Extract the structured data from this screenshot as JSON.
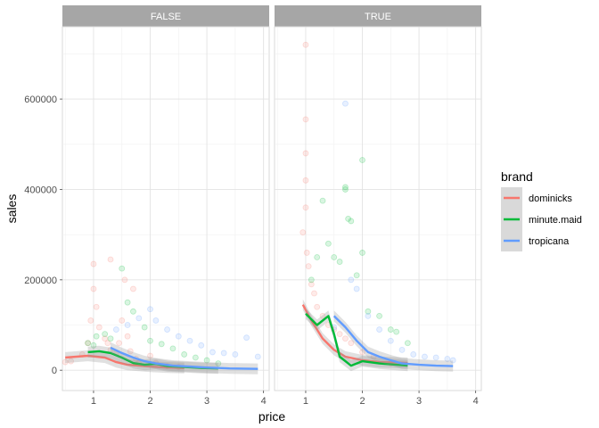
{
  "chart_data": {
    "type": "scatter",
    "title": "",
    "xlabel": "price",
    "ylabel": "sales",
    "xlim": [
      0.45,
      4.1
    ],
    "ylim": [
      -45000,
      760000
    ],
    "x_ticks": [
      1,
      2,
      3,
      4
    ],
    "y_ticks": [
      0,
      200000,
      400000,
      600000
    ],
    "y_tick_labels": [
      "0",
      "200000",
      "400000",
      "600000"
    ],
    "grid": true,
    "facets": [
      "FALSE",
      "TRUE"
    ],
    "legend": {
      "title": "brand",
      "position": "right",
      "entries": [
        "dominicks",
        "minute.maid",
        "tropicana"
      ]
    },
    "colors": {
      "dominicks": "#F8766D",
      "minute.maid": "#00BA38",
      "tropicana": "#619CFF",
      "strip_bg": "#A6A6A6",
      "ribbon": "#999999"
    },
    "series": [
      {
        "name": "dominicks",
        "facet": "FALSE",
        "points": [
          [
            0.5,
            18000
          ],
          [
            0.6,
            20000
          ],
          [
            0.8,
            35000
          ],
          [
            0.9,
            60000
          ],
          [
            0.95,
            110000
          ],
          [
            1.0,
            180000
          ],
          [
            1.0,
            235000
          ],
          [
            1.05,
            140000
          ],
          [
            1.1,
            95000
          ],
          [
            1.2,
            70000
          ],
          [
            1.25,
            60000
          ],
          [
            1.3,
            245000
          ],
          [
            1.3,
            45000
          ],
          [
            1.4,
            38000
          ],
          [
            1.45,
            60000
          ],
          [
            1.5,
            110000
          ],
          [
            1.55,
            200000
          ],
          [
            1.6,
            75000
          ],
          [
            1.65,
            42000
          ],
          [
            1.7,
            180000
          ],
          [
            1.75,
            25000
          ],
          [
            1.8,
            15000
          ],
          [
            2.0,
            32000
          ],
          [
            2.1,
            16000
          ],
          [
            2.3,
            9000
          ],
          [
            2.5,
            7000
          ]
        ],
        "smooth": [
          [
            0.5,
            28000
          ],
          [
            0.9,
            32000
          ],
          [
            1.2,
            28000
          ],
          [
            1.4,
            18000
          ],
          [
            1.6,
            12000
          ],
          [
            1.8,
            10000
          ],
          [
            2.0,
            8000
          ],
          [
            2.3,
            6000
          ],
          [
            2.6,
            5000
          ]
        ]
      },
      {
        "name": "minute.maid",
        "facet": "FALSE",
        "points": [
          [
            0.9,
            60000
          ],
          [
            1.0,
            55000
          ],
          [
            1.05,
            75000
          ],
          [
            1.2,
            80000
          ],
          [
            1.3,
            70000
          ],
          [
            1.5,
            225000
          ],
          [
            1.6,
            150000
          ],
          [
            1.7,
            130000
          ],
          [
            1.9,
            95000
          ],
          [
            2.0,
            65000
          ],
          [
            2.2,
            58000
          ],
          [
            2.4,
            48000
          ],
          [
            2.6,
            35000
          ],
          [
            2.8,
            28000
          ],
          [
            3.0,
            22000
          ],
          [
            3.2,
            15000
          ]
        ],
        "smooth": [
          [
            0.9,
            40000
          ],
          [
            1.1,
            42000
          ],
          [
            1.3,
            38000
          ],
          [
            1.5,
            28000
          ],
          [
            1.7,
            16000
          ],
          [
            1.9,
            12000
          ],
          [
            2.1,
            14000
          ],
          [
            2.3,
            9000
          ],
          [
            2.6,
            7000
          ],
          [
            2.9,
            5000
          ],
          [
            3.2,
            4000
          ]
        ]
      },
      {
        "name": "tropicana",
        "facet": "FALSE",
        "points": [
          [
            1.4,
            90000
          ],
          [
            1.6,
            100000
          ],
          [
            1.8,
            115000
          ],
          [
            2.0,
            135000
          ],
          [
            2.1,
            110000
          ],
          [
            2.3,
            90000
          ],
          [
            2.5,
            75000
          ],
          [
            2.7,
            65000
          ],
          [
            2.9,
            55000
          ],
          [
            3.1,
            40000
          ],
          [
            3.3,
            38000
          ],
          [
            3.5,
            35000
          ],
          [
            3.7,
            72000
          ],
          [
            3.9,
            30000
          ]
        ],
        "smooth": [
          [
            1.3,
            50000
          ],
          [
            1.5,
            38000
          ],
          [
            1.7,
            28000
          ],
          [
            1.9,
            20000
          ],
          [
            2.1,
            15000
          ],
          [
            2.4,
            10000
          ],
          [
            2.7,
            8000
          ],
          [
            3.0,
            6000
          ],
          [
            3.4,
            4000
          ],
          [
            3.9,
            3000
          ]
        ]
      },
      {
        "name": "dominicks",
        "facet": "TRUE",
        "points": [
          [
            0.95,
            305000
          ],
          [
            1.0,
            720000
          ],
          [
            1.0,
            555000
          ],
          [
            1.0,
            480000
          ],
          [
            1.0,
            420000
          ],
          [
            1.0,
            360000
          ],
          [
            1.02,
            260000
          ],
          [
            1.05,
            230000
          ],
          [
            1.1,
            190000
          ],
          [
            1.15,
            170000
          ],
          [
            1.2,
            140000
          ],
          [
            1.3,
            120000
          ],
          [
            1.4,
            100000
          ],
          [
            1.5,
            90000
          ],
          [
            1.6,
            80000
          ],
          [
            1.7,
            70000
          ],
          [
            1.8,
            60000
          ],
          [
            2.0,
            40000
          ],
          [
            2.2,
            30000
          ],
          [
            2.5,
            15000
          ]
        ],
        "smooth": [
          [
            0.95,
            145000
          ],
          [
            1.1,
            110000
          ],
          [
            1.3,
            70000
          ],
          [
            1.5,
            45000
          ],
          [
            1.7,
            30000
          ],
          [
            2.0,
            22000
          ],
          [
            2.3,
            18000
          ],
          [
            2.6,
            17000
          ],
          [
            2.8,
            16000
          ]
        ]
      },
      {
        "name": "minute.maid",
        "facet": "TRUE",
        "points": [
          [
            1.1,
            200000
          ],
          [
            1.2,
            250000
          ],
          [
            1.3,
            375000
          ],
          [
            1.4,
            280000
          ],
          [
            1.5,
            250000
          ],
          [
            1.6,
            240000
          ],
          [
            1.7,
            405000
          ],
          [
            1.7,
            400000
          ],
          [
            1.75,
            335000
          ],
          [
            1.8,
            330000
          ],
          [
            1.9,
            210000
          ],
          [
            2.0,
            465000
          ],
          [
            2.0,
            260000
          ],
          [
            2.1,
            130000
          ],
          [
            2.3,
            120000
          ],
          [
            2.5,
            90000
          ],
          [
            2.6,
            85000
          ],
          [
            2.8,
            60000
          ]
        ],
        "smooth": [
          [
            1.0,
            125000
          ],
          [
            1.2,
            100000
          ],
          [
            1.4,
            120000
          ],
          [
            1.5,
            80000
          ],
          [
            1.6,
            30000
          ],
          [
            1.8,
            10000
          ],
          [
            2.0,
            20000
          ],
          [
            2.3,
            15000
          ],
          [
            2.6,
            12000
          ],
          [
            2.8,
            10000
          ]
        ]
      },
      {
        "name": "tropicana",
        "facet": "TRUE",
        "points": [
          [
            1.5,
            95000
          ],
          [
            1.7,
            590000
          ],
          [
            1.8,
            200000
          ],
          [
            1.9,
            180000
          ],
          [
            2.1,
            120000
          ],
          [
            2.3,
            90000
          ],
          [
            2.5,
            65000
          ],
          [
            2.7,
            45000
          ],
          [
            2.9,
            35000
          ],
          [
            3.1,
            30000
          ],
          [
            3.3,
            28000
          ],
          [
            3.5,
            25000
          ],
          [
            3.6,
            22000
          ]
        ],
        "smooth": [
          [
            1.5,
            120000
          ],
          [
            1.7,
            95000
          ],
          [
            1.9,
            65000
          ],
          [
            2.1,
            40000
          ],
          [
            2.3,
            30000
          ],
          [
            2.5,
            22000
          ],
          [
            2.7,
            15000
          ],
          [
            3.0,
            12000
          ],
          [
            3.3,
            10000
          ],
          [
            3.6,
            9000
          ]
        ]
      }
    ]
  }
}
